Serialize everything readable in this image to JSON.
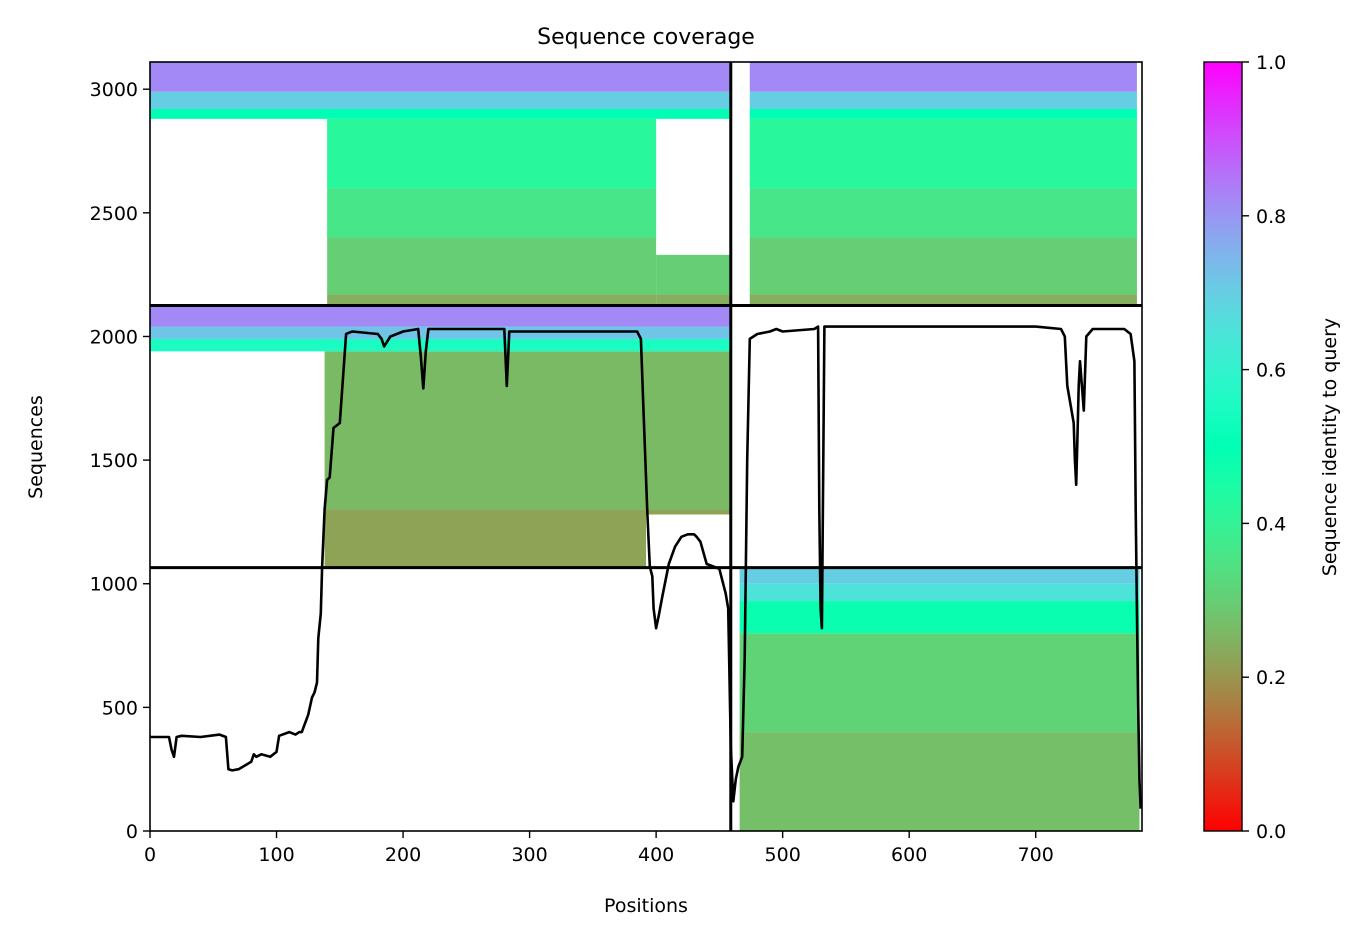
{
  "chart_data": {
    "type": "heatmap",
    "title": "Sequence coverage",
    "xlabel": "Positions",
    "ylabel": "Sequences",
    "xlim": [
      0,
      784
    ],
    "ylim": [
      0,
      3110
    ],
    "x_ticks": [
      0,
      100,
      200,
      300,
      400,
      500,
      600,
      700
    ],
    "y_ticks": [
      0,
      500,
      1000,
      1500,
      2000,
      2500,
      3000
    ],
    "grid": false,
    "colorbar": {
      "label": "Sequence identity to query",
      "range": [
        0,
        1
      ],
      "ticks": [
        0.0,
        0.2,
        0.4,
        0.6,
        0.8,
        1.0
      ],
      "tick_labels": [
        "0.0",
        "0.2",
        "0.4",
        "0.6",
        "0.8",
        "1.0"
      ],
      "colormap": "rainbow_r"
    },
    "chain_boundaries": {
      "x": [
        459
      ],
      "y": [
        1065,
        2125
      ]
    },
    "coverage_blocks": [
      {
        "x_range": [
          0,
          459
        ],
        "y_range": [
          2125,
          3110
        ],
        "identity_bands": [
          {
            "y": [
              2125,
              2170
            ],
            "identity": 0.24
          },
          {
            "y": [
              2170,
              2400
            ],
            "identity": 0.3
          },
          {
            "y": [
              2400,
              2600
            ],
            "identity": 0.36
          },
          {
            "y": [
              2600,
              2880
            ],
            "identity": 0.42
          },
          {
            "y": [
              2880,
              2920
            ],
            "identity": 0.5
          },
          {
            "y": [
              2920,
              2990
            ],
            "identity": 0.7
          },
          {
            "y": [
              2990,
              3110
            ],
            "identity": 0.82
          }
        ],
        "covered_segments": [
          {
            "x": [
              140,
              400
            ],
            "y": [
              2125,
              2880
            ]
          },
          {
            "x": [
              400,
              459
            ],
            "y": [
              2125,
              2330
            ]
          },
          {
            "x": [
              0,
              459
            ],
            "y": [
              2880,
              3110
            ]
          }
        ]
      },
      {
        "x_range": [
          459,
          784
        ],
        "y_range": [
          2125,
          3110
        ],
        "identity_bands": [
          {
            "y": [
              2125,
              2170
            ],
            "identity": 0.24
          },
          {
            "y": [
              2170,
              2400
            ],
            "identity": 0.3
          },
          {
            "y": [
              2400,
              2600
            ],
            "identity": 0.36
          },
          {
            "y": [
              2600,
              2880
            ],
            "identity": 0.42
          },
          {
            "y": [
              2880,
              2920
            ],
            "identity": 0.5
          },
          {
            "y": [
              2920,
              2990
            ],
            "identity": 0.7
          },
          {
            "y": [
              2990,
              3110
            ],
            "identity": 0.82
          }
        ],
        "covered_segments": [
          {
            "x": [
              474,
              780
            ],
            "y": [
              2125,
              3110
            ]
          }
        ]
      },
      {
        "x_range": [
          0,
          459
        ],
        "y_range": [
          1065,
          2125
        ],
        "identity_bands": [
          {
            "y": [
              1065,
              1300
            ],
            "identity": 0.22
          },
          {
            "y": [
              1300,
              1940
            ],
            "identity": 0.26
          },
          {
            "y": [
              1940,
              1990
            ],
            "identity": 0.55
          },
          {
            "y": [
              1990,
              2040
            ],
            "identity": 0.72
          },
          {
            "y": [
              2040,
              2125
            ],
            "identity": 0.82
          }
        ],
        "covered_segments": [
          {
            "x": [
              138,
              392
            ],
            "y": [
              1065,
              1940
            ]
          },
          {
            "x": [
              392,
              459
            ],
            "y": [
              1280,
              1940
            ]
          },
          {
            "x": [
              0,
              459
            ],
            "y": [
              1940,
              2125
            ]
          }
        ]
      },
      {
        "x_range": [
          459,
          784
        ],
        "y_range": [
          0,
          1065
        ],
        "identity_bands": [
          {
            "y": [
              0,
              400
            ],
            "identity": 0.27
          },
          {
            "y": [
              400,
              800
            ],
            "identity": 0.31
          },
          {
            "y": [
              800,
              930
            ],
            "identity": 0.48
          },
          {
            "y": [
              930,
              1000
            ],
            "identity": 0.65
          },
          {
            "y": [
              1000,
              1065
            ],
            "identity": 0.7
          }
        ],
        "covered_segments": [
          {
            "x": [
              466,
              782
            ],
            "y": [
              0,
              1065
            ]
          }
        ]
      }
    ],
    "coverage_line": {
      "x": [
        0,
        15,
        17,
        19,
        21,
        25,
        40,
        55,
        60,
        62,
        65,
        70,
        75,
        80,
        82,
        84,
        88,
        95,
        100,
        102,
        110,
        115,
        118,
        120,
        125,
        128,
        130,
        132,
        133,
        135,
        136,
        138,
        140,
        142,
        145,
        150,
        155,
        157,
        160,
        180,
        183,
        185,
        190,
        200,
        212,
        214,
        216,
        218,
        220,
        240,
        280,
        282,
        284,
        300,
        370,
        385,
        388,
        390,
        393,
        395,
        397,
        398,
        400,
        402,
        405,
        410,
        415,
        420,
        425,
        430,
        432,
        435,
        440,
        445,
        450,
        452,
        455,
        457,
        459,
        461,
        463,
        465,
        468,
        470,
        472,
        474,
        480,
        490,
        495,
        500,
        525,
        528,
        529,
        530,
        531,
        533,
        535,
        540,
        600,
        650,
        700,
        720,
        723,
        725,
        730,
        731,
        732,
        733,
        734,
        735,
        738,
        740,
        745,
        760,
        770,
        775,
        778,
        779,
        780,
        781,
        782,
        783
      ],
      "y": [
        380,
        380,
        330,
        300,
        380,
        385,
        380,
        390,
        380,
        250,
        245,
        250,
        265,
        280,
        310,
        300,
        310,
        300,
        320,
        385,
        400,
        390,
        400,
        400,
        470,
        540,
        560,
        600,
        780,
        880,
        1065,
        1300,
        1420,
        1430,
        1630,
        1650,
        2010,
        2015,
        2020,
        2010,
        1990,
        1960,
        2000,
        2020,
        2030,
        1920,
        1790,
        1940,
        2030,
        2030,
        2030,
        1800,
        2020,
        2020,
        2020,
        2020,
        1990,
        1700,
        1290,
        1070,
        1030,
        900,
        820,
        870,
        950,
        1080,
        1150,
        1190,
        1200,
        1200,
        1190,
        1170,
        1080,
        1070,
        1060,
        1020,
        960,
        900,
        340,
        120,
        210,
        260,
        300,
        700,
        1500,
        1990,
        2010,
        2020,
        2030,
        2020,
        2030,
        2040,
        1300,
        900,
        820,
        2040,
        2040,
        2040,
        2040,
        2040,
        2040,
        2030,
        2000,
        1800,
        1650,
        1500,
        1400,
        1600,
        1800,
        1900,
        1700,
        2000,
        2030,
        2030,
        2030,
        2010,
        1900,
        1300,
        900,
        500,
        200,
        90
      ]
    }
  }
}
